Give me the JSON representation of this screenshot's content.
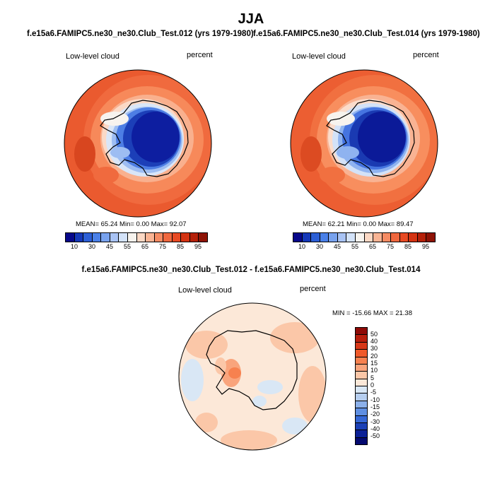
{
  "title": "JJA",
  "panels": [
    {
      "case_title": "f.e15a6.FAMIPC5.ne30_ne30.Club_Test.012 (yrs 1979-1980)",
      "variable": "Low-level cloud",
      "units": "percent",
      "stats": "MEAN= 65.24 Min= 0.00 Max= 92.07"
    },
    {
      "case_title": "f.e15a6.FAMIPC5.ne30_ne30.Club_Test.014 (yrs 1979-1980)",
      "variable": "Low-level cloud",
      "units": "percent",
      "stats": "MEAN= 62.21 Min= 0.00 Max= 89.47"
    }
  ],
  "abs_colorbar": {
    "tick_labels": [
      "10",
      "30",
      "45",
      "55",
      "65",
      "75",
      "85",
      "95"
    ],
    "colors": [
      "#08088a",
      "#1538b8",
      "#2c5fd6",
      "#4a80e8",
      "#78a2ee",
      "#a9c3f4",
      "#d3e2f8",
      "#f7f3ee",
      "#fbd8c4",
      "#f9b494",
      "#f58b63",
      "#f0683f",
      "#e84a23",
      "#d43312",
      "#b52009",
      "#8e1306"
    ]
  },
  "difference": {
    "title": "f.e15a6.FAMIPC5.ne30_ne30.Club_Test.012 - f.e15a6.FAMIPC5.ne30_ne30.Club_Test.014",
    "variable": "Low-level cloud",
    "units": "percent",
    "stats": "MIN = -15.66 MAX = 21.38",
    "colorbar": {
      "tick_labels": [
        "50",
        "40",
        "30",
        "20",
        "15",
        "10",
        "5",
        "0",
        "-5",
        "-10",
        "-15",
        "-20",
        "-30",
        "-40",
        "-50"
      ],
      "colors": [
        "#8e0a06",
        "#b81e0c",
        "#d83818",
        "#f05a2a",
        "#f7814f",
        "#f9a47c",
        "#fbc7a8",
        "#fce8d8",
        "#d9e7f5",
        "#b6ceef",
        "#8bb0ea",
        "#5f8fe2",
        "#3668d6",
        "#1b40b6",
        "#0b2096",
        "#040a70"
      ]
    }
  }
}
